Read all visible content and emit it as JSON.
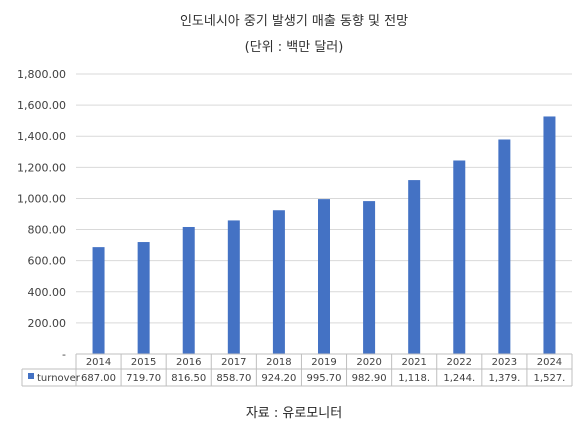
{
  "chart_data": {
    "type": "bar",
    "title": "인도네시아 중기 발생기 매출 동향 및 전망",
    "subtitle": "(단위 : 백만 달러)",
    "categories": [
      "2014",
      "2015",
      "2016",
      "2017",
      "2018",
      "2019",
      "2020",
      "2021",
      "2022",
      "2023",
      "2024"
    ],
    "series": [
      {
        "name": "turnover",
        "values": [
          687.0,
          719.7,
          816.5,
          858.7,
          924.2,
          995.7,
          982.9,
          1118,
          1244,
          1379,
          1527
        ],
        "labels": [
          "687.00",
          "719.70",
          "816.50",
          "858.70",
          "924.20",
          "995.70",
          "982.90",
          "1,118.",
          "1,244.",
          "1,379.",
          "1,527."
        ],
        "color": "#4472C4"
      }
    ],
    "ylim": [
      0,
      1800
    ],
    "yticks": [
      "-",
      "200.00",
      "400.00",
      "600.00",
      "800.00",
      "1,000.00",
      "1,200.00",
      "1,400.00",
      "1,600.00",
      "1,800.00"
    ],
    "grid": true,
    "legend": "data-table-left",
    "source": "자료 : 유로모니터"
  }
}
